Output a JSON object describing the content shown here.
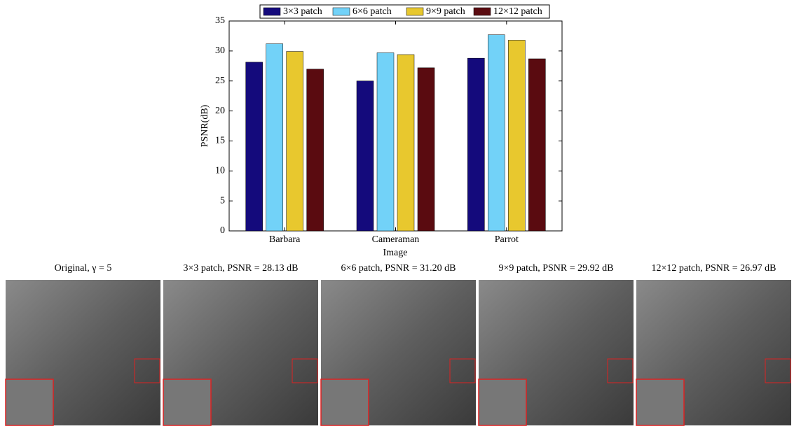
{
  "chart_data": {
    "type": "bar",
    "ylabel": "PSNR(dB)",
    "xlabel": "Image",
    "categories": [
      "Barbara",
      "Cameraman",
      "Parrot"
    ],
    "series": [
      {
        "name": "3×3 patch",
        "color": "#140a7c",
        "values": [
          28.13,
          25.0,
          28.8
        ]
      },
      {
        "name": "6×6 patch",
        "color": "#72d2f8",
        "values": [
          31.2,
          29.7,
          32.7
        ]
      },
      {
        "name": "9×9 patch",
        "color": "#e8c82e",
        "values": [
          29.92,
          29.4,
          31.8
        ]
      },
      {
        "name": "12×12 patch",
        "color": "#5a0b10",
        "values": [
          26.97,
          27.2,
          28.7
        ]
      }
    ],
    "ylim": [
      0,
      35
    ],
    "yticks": [
      0,
      5,
      10,
      15,
      20,
      25,
      30,
      35
    ],
    "grid": false,
    "legend": "top"
  },
  "panels": [
    {
      "caption": "Original, γ = 5"
    },
    {
      "caption": "3×3 patch,  PSNR = 28.13  dB"
    },
    {
      "caption": "6×6 patch,  PSNR = 31.20  dB"
    },
    {
      "caption": "9×9 patch,  PSNR = 29.92  dB"
    },
    {
      "caption": "12×12 patch,  PSNR = 26.97  dB"
    }
  ]
}
